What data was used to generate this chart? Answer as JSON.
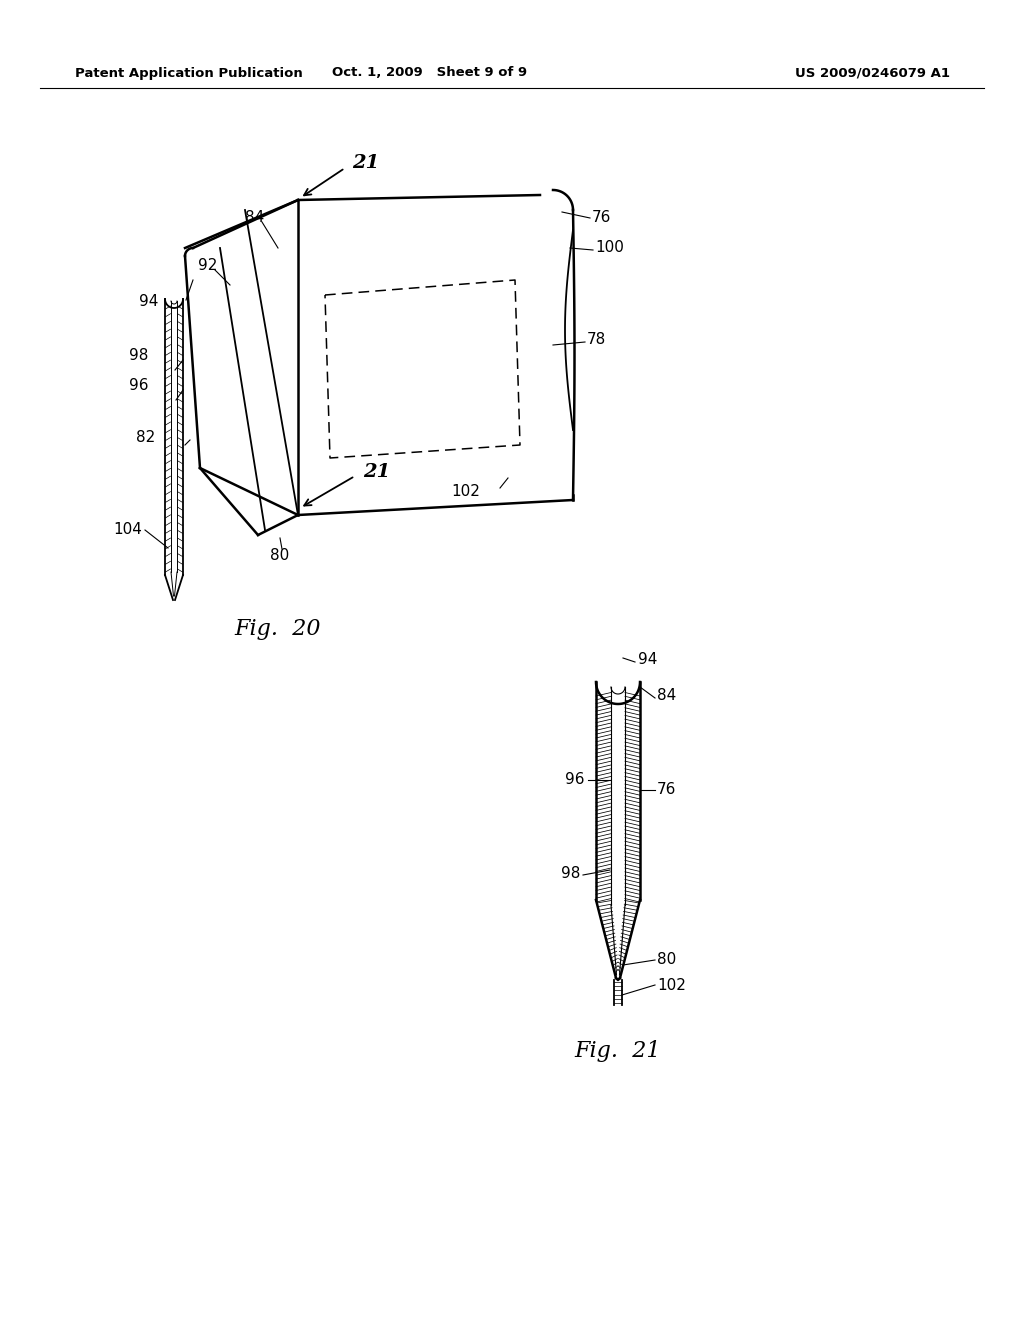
{
  "background_color": "#ffffff",
  "header_left": "Patent Application Publication",
  "header_mid": "Oct. 1, 2009   Sheet 9 of 9",
  "header_right": "US 2009/0246079 A1",
  "fig20_caption": "Fig.  20",
  "fig21_caption": "Fig.  21",
  "line_color": "#000000"
}
